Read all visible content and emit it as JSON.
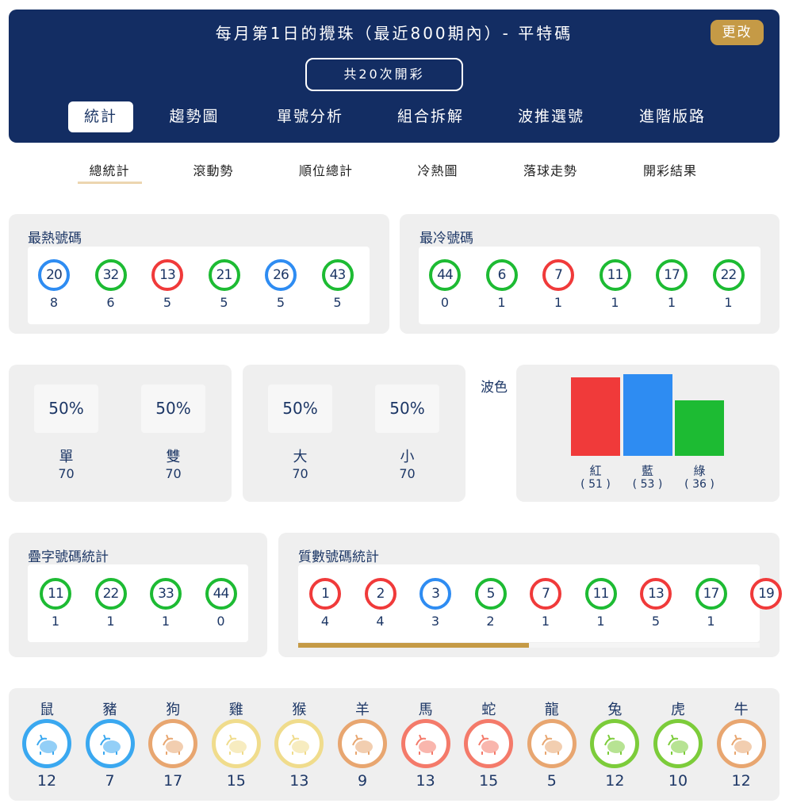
{
  "header": {
    "title": "每月第1日的攪珠（最近800期內）- 平特碼",
    "change_label": "更改",
    "draw_count": "共20次開彩",
    "tabs": [
      "統計",
      "趨勢圖",
      "單號分析",
      "組合拆解",
      "波推選號",
      "進階版路"
    ]
  },
  "subtabs": [
    "總統計",
    "滾動勢",
    "順位總計",
    "冷熱圖",
    "落球走勢",
    "開彩結果"
  ],
  "colors": {
    "red": "#f03a3a",
    "blue": "#2e8cf2",
    "green": "#1dbb33",
    "navy": "#132d63",
    "gold": "#c59a46"
  },
  "hot": {
    "title": "最熱號碼",
    "balls": [
      {
        "n": "20",
        "c": "blue",
        "v": "8"
      },
      {
        "n": "32",
        "c": "green",
        "v": "6"
      },
      {
        "n": "13",
        "c": "red",
        "v": "5"
      },
      {
        "n": "21",
        "c": "green",
        "v": "5"
      },
      {
        "n": "26",
        "c": "blue",
        "v": "5"
      },
      {
        "n": "43",
        "c": "green",
        "v": "5"
      }
    ]
  },
  "cold": {
    "title": "最冷號碼",
    "balls": [
      {
        "n": "44",
        "c": "green",
        "v": "0"
      },
      {
        "n": "6",
        "c": "green",
        "v": "1"
      },
      {
        "n": "7",
        "c": "red",
        "v": "1"
      },
      {
        "n": "11",
        "c": "green",
        "v": "1"
      },
      {
        "n": "17",
        "c": "green",
        "v": "1"
      },
      {
        "n": "22",
        "c": "green",
        "v": "1"
      }
    ]
  },
  "oddeven": [
    {
      "pct": "50%",
      "label": "單",
      "value": "70"
    },
    {
      "pct": "50%",
      "label": "雙",
      "value": "70"
    }
  ],
  "bigsmall": [
    {
      "pct": "50%",
      "label": "大",
      "value": "70"
    },
    {
      "pct": "50%",
      "label": "小",
      "value": "70"
    }
  ],
  "wave": {
    "title": "波色",
    "bars": [
      {
        "label": "紅",
        "value": 51,
        "text": "( 51 )",
        "c": "red"
      },
      {
        "label": "藍",
        "value": 53,
        "text": "( 53 )",
        "c": "blue"
      },
      {
        "label": "綠",
        "value": 36,
        "text": "( 36 )",
        "c": "green"
      }
    ]
  },
  "double": {
    "title": "疊字號碼統計",
    "balls": [
      {
        "n": "11",
        "c": "green",
        "v": "1"
      },
      {
        "n": "22",
        "c": "green",
        "v": "1"
      },
      {
        "n": "33",
        "c": "green",
        "v": "1"
      },
      {
        "n": "44",
        "c": "green",
        "v": "0"
      }
    ]
  },
  "prime": {
    "title": "質數號碼統計",
    "scroll_progress": 0.5,
    "balls": [
      {
        "n": "1",
        "c": "red",
        "v": "4"
      },
      {
        "n": "2",
        "c": "red",
        "v": "4"
      },
      {
        "n": "3",
        "c": "blue",
        "v": "3"
      },
      {
        "n": "5",
        "c": "green",
        "v": "2"
      },
      {
        "n": "7",
        "c": "red",
        "v": "1"
      },
      {
        "n": "11",
        "c": "green",
        "v": "1"
      },
      {
        "n": "13",
        "c": "red",
        "v": "5"
      },
      {
        "n": "17",
        "c": "green",
        "v": "1"
      },
      {
        "n": "19",
        "c": "red",
        "v": ""
      }
    ]
  },
  "zodiac": [
    {
      "name": "鼠",
      "icon": "rat-icon",
      "v": "12",
      "c": "#3aa8f0"
    },
    {
      "name": "豬",
      "icon": "pig-icon",
      "v": "7",
      "c": "#3aa8f0"
    },
    {
      "name": "狗",
      "icon": "dog-icon",
      "v": "17",
      "c": "#e8a670"
    },
    {
      "name": "雞",
      "icon": "rooster-icon",
      "v": "15",
      "c": "#f0dc8c"
    },
    {
      "name": "猴",
      "icon": "monkey-icon",
      "v": "13",
      "c": "#f0dc8c"
    },
    {
      "name": "羊",
      "icon": "goat-icon",
      "v": "9",
      "c": "#e8a670"
    },
    {
      "name": "馬",
      "icon": "horse-icon",
      "v": "13",
      "c": "#f47a6a"
    },
    {
      "name": "蛇",
      "icon": "snake-icon",
      "v": "15",
      "c": "#f47a6a"
    },
    {
      "name": "龍",
      "icon": "dragon-icon",
      "v": "5",
      "c": "#e8a670"
    },
    {
      "name": "兔",
      "icon": "rabbit-icon",
      "v": "12",
      "c": "#7ccc3a"
    },
    {
      "name": "虎",
      "icon": "tiger-icon",
      "v": "10",
      "c": "#7ccc3a"
    },
    {
      "name": "牛",
      "icon": "ox-icon",
      "v": "12",
      "c": "#e8a670"
    }
  ]
}
